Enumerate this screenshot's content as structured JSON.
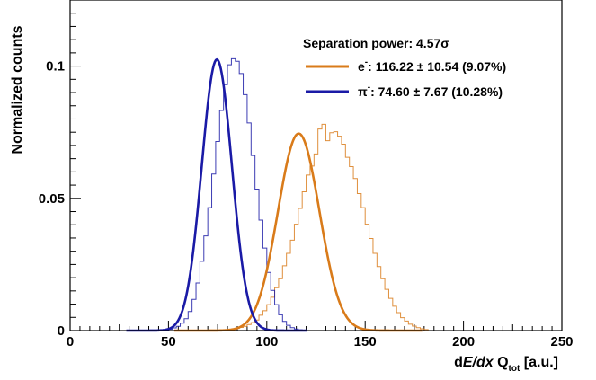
{
  "chart_data": {
    "type": "line",
    "title": "",
    "xlabel": {
      "prefix": "d",
      "italic": "E/dx",
      "main": " Q",
      "sub": "tot",
      "suffix": " [a.u.]"
    },
    "ylabel": "Normalized counts",
    "xlim": [
      0,
      250
    ],
    "ylim": [
      0,
      0.125
    ],
    "x_ticks": [
      0,
      50,
      100,
      150,
      200,
      250
    ],
    "x_tick_labels": [
      "0",
      "50",
      "100",
      "150",
      "200",
      "250"
    ],
    "y_ticks": [
      0,
      0.05,
      0.1
    ],
    "y_tick_labels": [
      "0",
      "0.05",
      "0.1"
    ],
    "grid": false,
    "legend": {
      "header": "Separation power: 4.57σ",
      "placement": "top-right"
    },
    "series": [
      {
        "name": "e-",
        "legend_label": {
          "base": "e",
          "sup": "-",
          "text": ": 116.22 ± 10.54 (9.07%)"
        },
        "color": "#d97b1a",
        "fit": {
          "function": "gaussian",
          "mean": 116.22,
          "sigma": 10.54,
          "peak": 0.0745
        },
        "histogram": {
          "bin_width": 2,
          "x_start": 80,
          "values": [
            0.0003,
            0.0006,
            0.0008,
            0.0012,
            0.0016,
            0.0023,
            0.003,
            0.004,
            0.0058,
            0.0075,
            0.0098,
            0.0126,
            0.0162,
            0.0196,
            0.0245,
            0.0292,
            0.0342,
            0.0402,
            0.0462,
            0.0525,
            0.0588,
            0.0622,
            0.0668,
            0.0762,
            0.078,
            0.0718,
            0.0748,
            0.0752,
            0.0735,
            0.0705,
            0.0655,
            0.062,
            0.0575,
            0.0518,
            0.0465,
            0.0402,
            0.0348,
            0.0292,
            0.0242,
            0.0196,
            0.0156,
            0.0122,
            0.0092,
            0.0068,
            0.0049,
            0.0036,
            0.0024,
            0.0017,
            0.0011,
            0.0007,
            0.0004
          ]
        }
      },
      {
        "name": "π-",
        "legend_label": {
          "base": "π",
          "sup": "-",
          "text": ": 74.60 ± 7.67 (10.28%)"
        },
        "color": "#1a1aa6",
        "fit": {
          "function": "gaussian",
          "mean": 74.6,
          "sigma": 7.67,
          "peak": 0.1025
        },
        "histogram": {
          "bin_width": 2,
          "x_start": 50,
          "values": [
            0.0005,
            0.001,
            0.0016,
            0.0028,
            0.0045,
            0.0072,
            0.0118,
            0.018,
            0.0262,
            0.0358,
            0.0465,
            0.0592,
            0.0715,
            0.0832,
            0.093,
            0.1005,
            0.1028,
            0.1018,
            0.0972,
            0.0892,
            0.0785,
            0.0662,
            0.0535,
            0.0418,
            0.0312,
            0.022,
            0.0152,
            0.0098,
            0.006,
            0.0035,
            0.002,
            0.0011,
            0.0006,
            0.0003
          ]
        }
      }
    ]
  }
}
